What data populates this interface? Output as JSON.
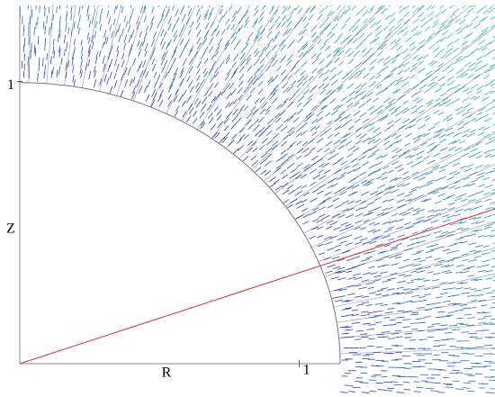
{
  "chart_data": {
    "type": "vector",
    "xlabel": "R",
    "ylabel": "Z",
    "xlim": [
      0,
      1.7
    ],
    "ylim": [
      -0.106,
      1.27
    ],
    "xticks": [
      1
    ],
    "yticks": [
      1
    ]
  }
}
